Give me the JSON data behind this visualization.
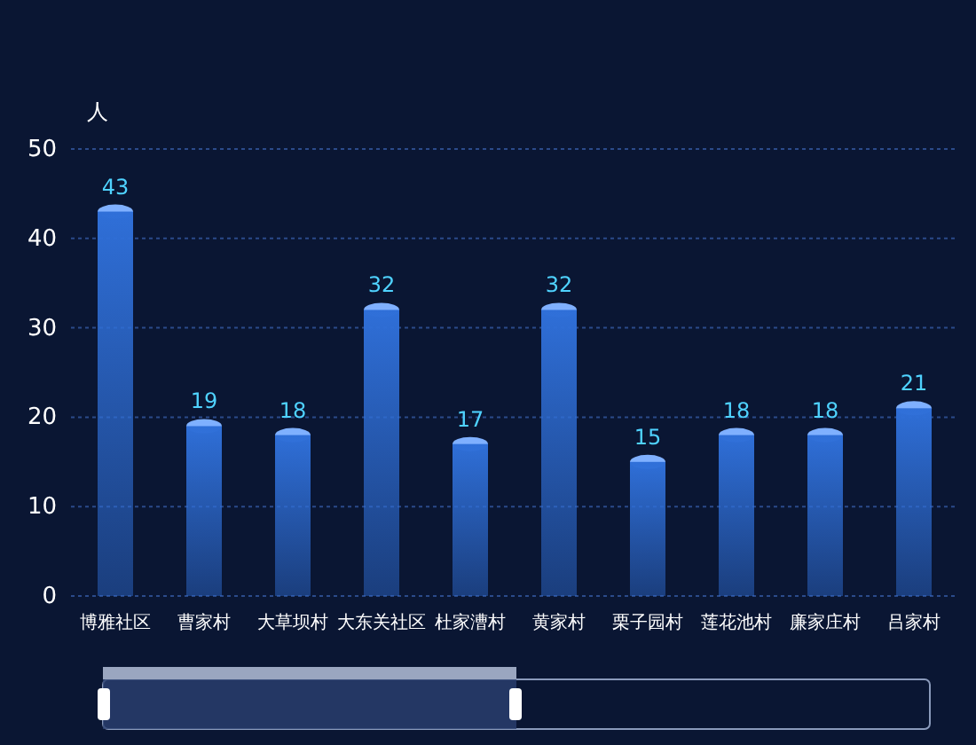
{
  "chart_data": {
    "type": "bar",
    "ylabel": "人",
    "categories": [
      "博雅社区",
      "曹家村",
      "大草坝村",
      "大东关社区",
      "杜家漕村",
      "黄家村",
      "栗子园村",
      "莲花池村",
      "廉家庄村",
      "吕家村"
    ],
    "values": [
      43,
      19,
      18,
      32,
      17,
      32,
      15,
      18,
      18,
      21
    ],
    "color": "#2f6fd8",
    "ylim": [
      0,
      50
    ],
    "yticks": [
      0,
      10,
      20,
      30,
      40,
      50
    ],
    "grid": "y",
    "data_labels": true
  }
}
